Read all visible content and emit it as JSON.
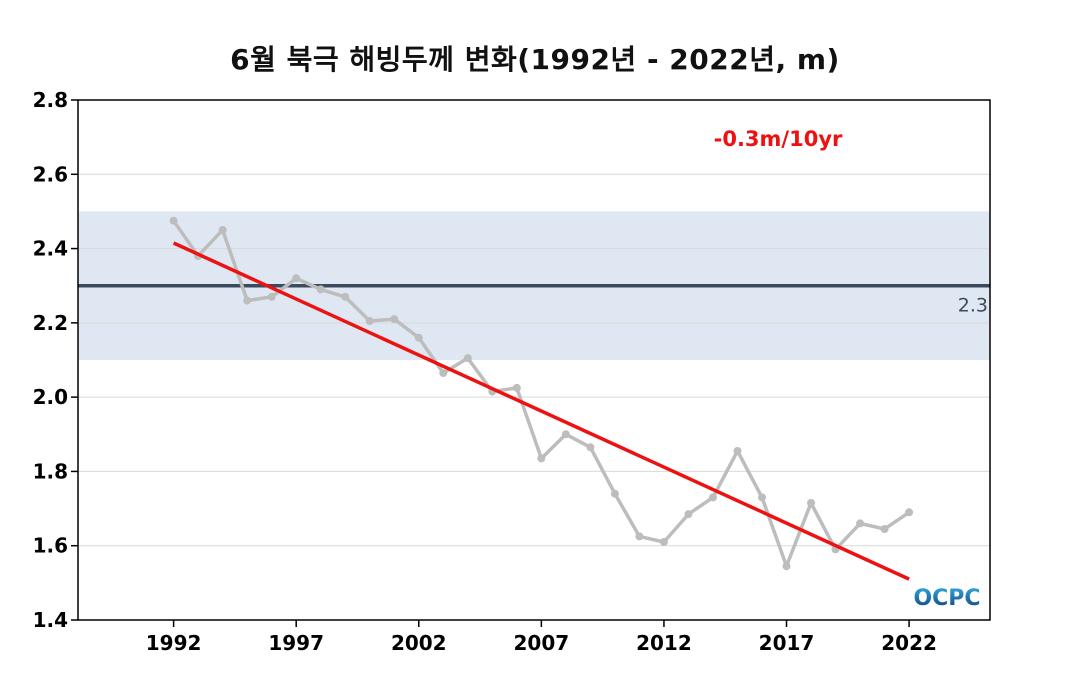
{
  "chart_data": {
    "type": "line",
    "title": "6월 북극 해빙두께 변화(1992년 - 2022년, m)",
    "xlabel": "",
    "ylabel": "",
    "xlim": [
      1988.1,
      2025.3
    ],
    "ylim": [
      1.4,
      2.8
    ],
    "x_ticks": [
      1992,
      1997,
      2002,
      2007,
      2012,
      2017,
      2022
    ],
    "y_ticks": [
      1.4,
      1.6,
      1.8,
      2.0,
      2.2,
      2.4,
      2.6,
      2.8
    ],
    "grid": true,
    "x": [
      1992,
      1993,
      1994,
      1995,
      1996,
      1997,
      1998,
      1999,
      2000,
      2001,
      2002,
      2003,
      2004,
      2005,
      2006,
      2007,
      2008,
      2009,
      2010,
      2011,
      2012,
      2013,
      2014,
      2015,
      2016,
      2017,
      2018,
      2019,
      2020,
      2021,
      2022
    ],
    "series": [
      {
        "values": [
          2.475,
          2.38,
          2.45,
          2.26,
          2.27,
          2.32,
          2.29,
          2.27,
          2.205,
          2.21,
          2.16,
          2.065,
          2.105,
          2.015,
          2.025,
          1.835,
          1.9,
          1.865,
          1.74,
          1.625,
          1.61,
          1.685,
          1.73,
          1.855,
          1.73,
          1.545,
          1.715,
          1.59,
          1.66,
          1.645,
          1.69
        ],
        "color": "#bdbdbd"
      }
    ],
    "trend": {
      "start": [
        1992,
        2.415
      ],
      "end": [
        2022,
        1.51
      ],
      "label": "-0.3m/10yr",
      "color": "#ee1111"
    },
    "reference": {
      "value": 2.3,
      "label": "2.3",
      "band": [
        2.1,
        2.5
      ],
      "color": "#3b4a5e",
      "band_color": "#dfe8f2"
    },
    "logo": "OCPC"
  }
}
